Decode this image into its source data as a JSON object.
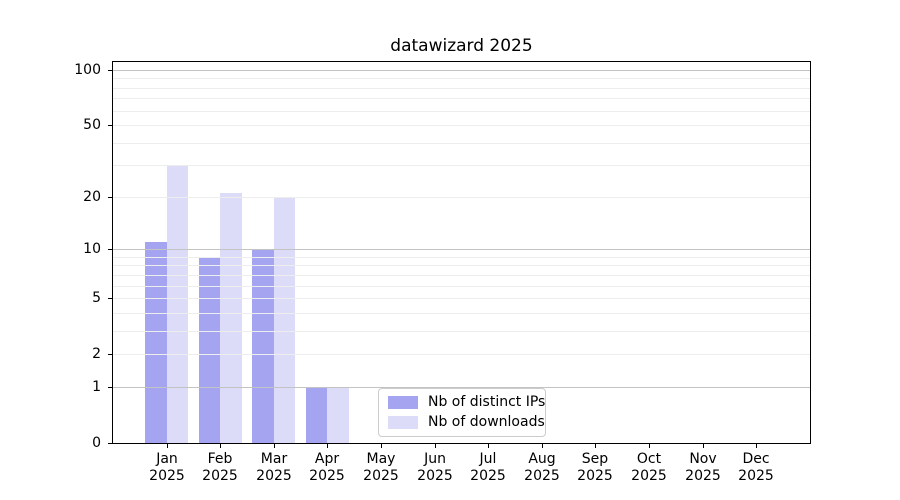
{
  "figure": {
    "background": "#ffffff"
  },
  "chart_data": {
    "type": "bar",
    "title": "datawizard 2025",
    "categories": [
      "Jan",
      "Feb",
      "Mar",
      "Apr",
      "May",
      "Jun",
      "Jul",
      "Aug",
      "Sep",
      "Oct",
      "Nov",
      "Dec"
    ],
    "x_tick_second_line": "2025",
    "series": [
      {
        "name": "Nb of distinct IPs",
        "color": "#a4a4f0",
        "values": [
          11,
          9,
          10,
          1,
          0,
          0,
          0,
          0,
          0,
          0,
          0,
          0
        ]
      },
      {
        "name": "Nb of downloads",
        "color": "#dcdcf9",
        "values": [
          30,
          21,
          20,
          1,
          0,
          0,
          0,
          0,
          0,
          0,
          0,
          0
        ]
      }
    ],
    "xlabel": "",
    "ylabel": "",
    "y_axis": {
      "scale": "log1p",
      "tick_values": [
        0,
        1,
        2,
        5,
        10,
        20,
        50,
        100
      ],
      "tick_labels": [
        "0",
        "1",
        "2",
        "5",
        "10",
        "20",
        "50",
        "100"
      ],
      "major_gridlines": [
        1,
        10,
        100
      ],
      "minor_gridlines": [
        2,
        3,
        4,
        5,
        6,
        7,
        8,
        9,
        20,
        30,
        40,
        50,
        60,
        70,
        80,
        90
      ],
      "top_value": 110
    },
    "grid": true,
    "legend_position": "inside-bottom-center",
    "colors": {
      "grid_major": "#c3c3c3",
      "grid_minor": "#ededed",
      "axis": "#000000",
      "text": "#000000",
      "legend_border": "#cccccc"
    }
  }
}
